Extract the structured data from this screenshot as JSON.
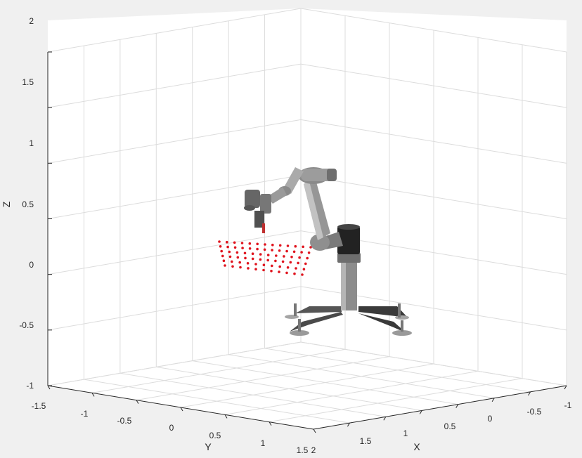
{
  "chart_data": {
    "type": "scatter",
    "projection": "3d",
    "grid": true,
    "xlabel": "X",
    "ylabel": "Y",
    "zlabel": "Z",
    "xlim": [
      -1,
      2
    ],
    "ylim": [
      -1.5,
      2
    ],
    "zlim": [
      -1,
      2
    ],
    "x_ticks": [
      "-1",
      "-0.5",
      "0",
      "0.5",
      "1",
      "1.5",
      "2"
    ],
    "y_ticks": [
      "-1.5",
      "-1",
      "-0.5",
      "0",
      "0.5",
      "1",
      "1.5"
    ],
    "z_ticks": [
      "-1",
      "-0.5",
      "0",
      "0.5",
      "1",
      "1.5",
      "2"
    ],
    "series": [
      {
        "color": "#e0141e",
        "marker": "dot",
        "grid_rows": 6,
        "grid_cols": 13
      }
    ],
    "overlay_icons": [
      "robot-arm-icon"
    ],
    "colors": {
      "background": "#f0f0f0",
      "axes": "#ffffff",
      "grid": "#dcdcdc",
      "axis_line": "#262626",
      "points": "#e0141e",
      "robot_metal": "#8a8a8a",
      "robot_dark": "#2a2a2a"
    }
  }
}
